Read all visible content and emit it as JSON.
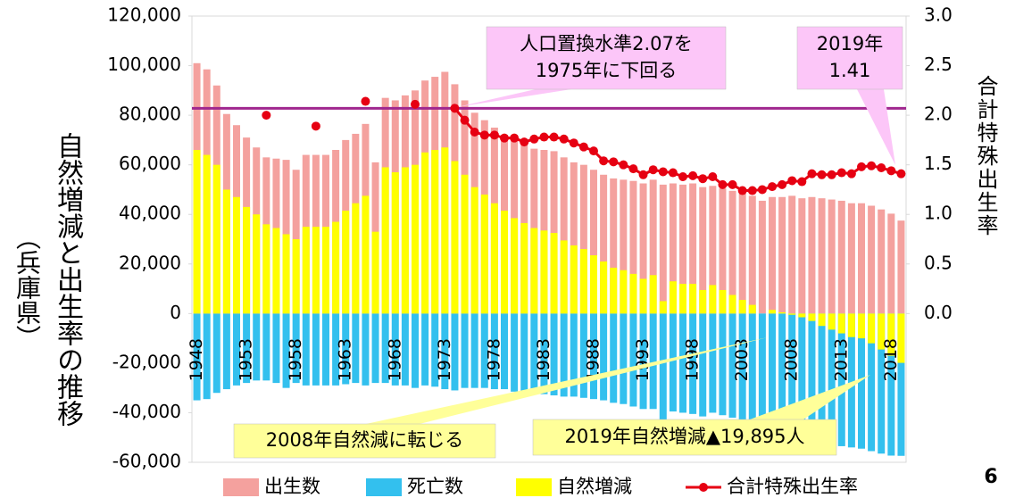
{
  "chart_data": {
    "type": "bar",
    "title": "自然増減と出生率の推移",
    "subtitle": "（兵庫県）",
    "y2_label": "合計特殊出生率",
    "page_number": "6",
    "categories": [
      "1948",
      null,
      null,
      null,
      null,
      "1953",
      null,
      null,
      null,
      null,
      "1958",
      null,
      null,
      null,
      null,
      "1963",
      null,
      null,
      null,
      null,
      "1968",
      null,
      null,
      null,
      null,
      "1973",
      null,
      null,
      null,
      null,
      "1978",
      null,
      null,
      null,
      null,
      "1983",
      null,
      null,
      null,
      null,
      "1988",
      null,
      null,
      null,
      null,
      "1993",
      null,
      null,
      null,
      null,
      "1998",
      null,
      null,
      null,
      null,
      "2003",
      null,
      null,
      null,
      null,
      "2008",
      null,
      null,
      null,
      null,
      "2013",
      null,
      null,
      null,
      null,
      "2018",
      null
    ],
    "series": [
      {
        "name": "出生数",
        "color": "#f4a19e",
        "values": [
          101000,
          98500,
          92000,
          80500,
          76000,
          71000,
          67000,
          63000,
          62500,
          62000,
          58000,
          64000,
          64000,
          64000,
          66000,
          70000,
          72500,
          76500,
          61000,
          87000,
          86000,
          88000,
          90000,
          94000,
          95500,
          97500,
          92500,
          86000,
          81000,
          78000,
          75000,
          72000,
          70000,
          68000,
          66500,
          66000,
          65500,
          63000,
          61000,
          60000,
          58000,
          56000,
          54500,
          54000,
          53500,
          52500,
          54000,
          52000,
          52500,
          52000,
          52500,
          51000,
          51500,
          50500,
          49500,
          48500,
          47500,
          45500,
          47000,
          47000,
          47500,
          46500,
          47000,
          46500,
          46000,
          45500,
          44500,
          44500,
          43500,
          42000,
          40300,
          37500
        ]
      },
      {
        "name": "死亡数",
        "color": "#33c0ee",
        "values": [
          -35000,
          -34500,
          -32000,
          -30500,
          -29000,
          -28000,
          -27000,
          -27000,
          -28000,
          -30000,
          -28000,
          -29000,
          -29000,
          -29000,
          -29000,
          -28500,
          -28000,
          -29000,
          -28000,
          -28000,
          -29000,
          -29000,
          -30000,
          -29000,
          -29500,
          -30500,
          -31000,
          -30000,
          -30000,
          -30000,
          -30500,
          -30500,
          -31500,
          -31500,
          -32000,
          -32500,
          -33000,
          -33500,
          -33500,
          -34000,
          -34500,
          -35000,
          -36000,
          -36500,
          -37500,
          -38500,
          -38500,
          -47000,
          -39500,
          -40000,
          -40500,
          -41500,
          -40000,
          -41000,
          -42000,
          -43000,
          -44000,
          -45500,
          -45500,
          -46500,
          -48000,
          -48000,
          -50000,
          -51500,
          -52500,
          -53500,
          -54000,
          -54500,
          -55500,
          -56500,
          -57300,
          -57395
        ]
      },
      {
        "name": "自然増減",
        "color": "#ffff00",
        "values": [
          66000,
          64000,
          60000,
          50000,
          47000,
          43000,
          40000,
          36000,
          34500,
          32000,
          30000,
          35000,
          35000,
          35000,
          37000,
          41500,
          44500,
          47500,
          33000,
          59000,
          57000,
          59000,
          60000,
          65000,
          66000,
          67000,
          61500,
          56000,
          51000,
          48000,
          44500,
          41500,
          38500,
          36500,
          34500,
          33500,
          32500,
          29500,
          27500,
          26000,
          23500,
          21000,
          18500,
          17500,
          16000,
          14000,
          15500,
          5000,
          13000,
          12000,
          12000,
          9500,
          11500,
          9500,
          7500,
          5500,
          3500,
          0,
          1500,
          500,
          -500,
          -1500,
          -3000,
          -5000,
          -6500,
          -8000,
          -9500,
          -10000,
          -12000,
          -14500,
          -17000,
          -19895
        ]
      },
      {
        "name": "合計特殊出生率",
        "color": "#e60012",
        "type": "line",
        "axis": "y2",
        "values": [
          null,
          null,
          null,
          null,
          null,
          null,
          null,
          2.0,
          null,
          null,
          null,
          null,
          1.89,
          null,
          null,
          null,
          null,
          2.14,
          null,
          null,
          null,
          null,
          2.11,
          null,
          null,
          null,
          2.07,
          1.95,
          1.83,
          1.8,
          1.8,
          1.77,
          1.77,
          1.73,
          1.76,
          1.78,
          1.78,
          1.76,
          1.72,
          1.68,
          1.64,
          1.54,
          1.53,
          1.5,
          1.46,
          1.4,
          1.45,
          1.43,
          1.42,
          1.38,
          1.39,
          1.36,
          1.38,
          1.3,
          1.3,
          1.24,
          1.24,
          1.25,
          1.28,
          1.3,
          1.34,
          1.33,
          1.41,
          1.4,
          1.4,
          1.42,
          1.41,
          1.48,
          1.49,
          1.47,
          1.44,
          1.41
        ]
      }
    ],
    "reference_line": {
      "value": 2.07,
      "axis": "y2",
      "color": "#a0278f"
    },
    "ylim": [
      -60000,
      120000
    ],
    "yticks": [
      {
        "value": -60000,
        "label": "-60,000"
      },
      {
        "value": -40000,
        "label": "-40,000"
      },
      {
        "value": -20000,
        "label": "-20,000"
      },
      0,
      {
        "value": 20000,
        "label": "20,000"
      },
      {
        "value": 40000,
        "label": "40,000"
      },
      {
        "value": 60000,
        "label": "60,000"
      },
      {
        "value": 80000,
        "label": "80,000"
      },
      {
        "value": 100000,
        "label": "100,000"
      },
      {
        "value": 120000,
        "label": "120,000"
      }
    ],
    "y2lim": [
      -1.5,
      3.0
    ],
    "y2ticks": [
      {
        "value": 0,
        "label": "0.0"
      },
      0.5,
      {
        "value": 1,
        "label": "1.0"
      },
      1.5,
      {
        "value": 2,
        "label": "2.0"
      },
      2.5,
      {
        "value": 3,
        "label": "3.0"
      }
    ],
    "legend": "bottom",
    "annotations": [
      {
        "lines": [
          "人口置換水準2.07を",
          "1975年に下回る"
        ],
        "color": "#fcc6f8"
      },
      {
        "lines": [
          "2019年",
          "1.41"
        ],
        "color": "#fcc6f8"
      },
      {
        "lines": [
          "2008年自然減に転じる"
        ],
        "color": "#ffff99"
      },
      {
        "lines": [
          "2019年自然増減▲19,895人"
        ],
        "color": "#ffff99"
      }
    ]
  }
}
